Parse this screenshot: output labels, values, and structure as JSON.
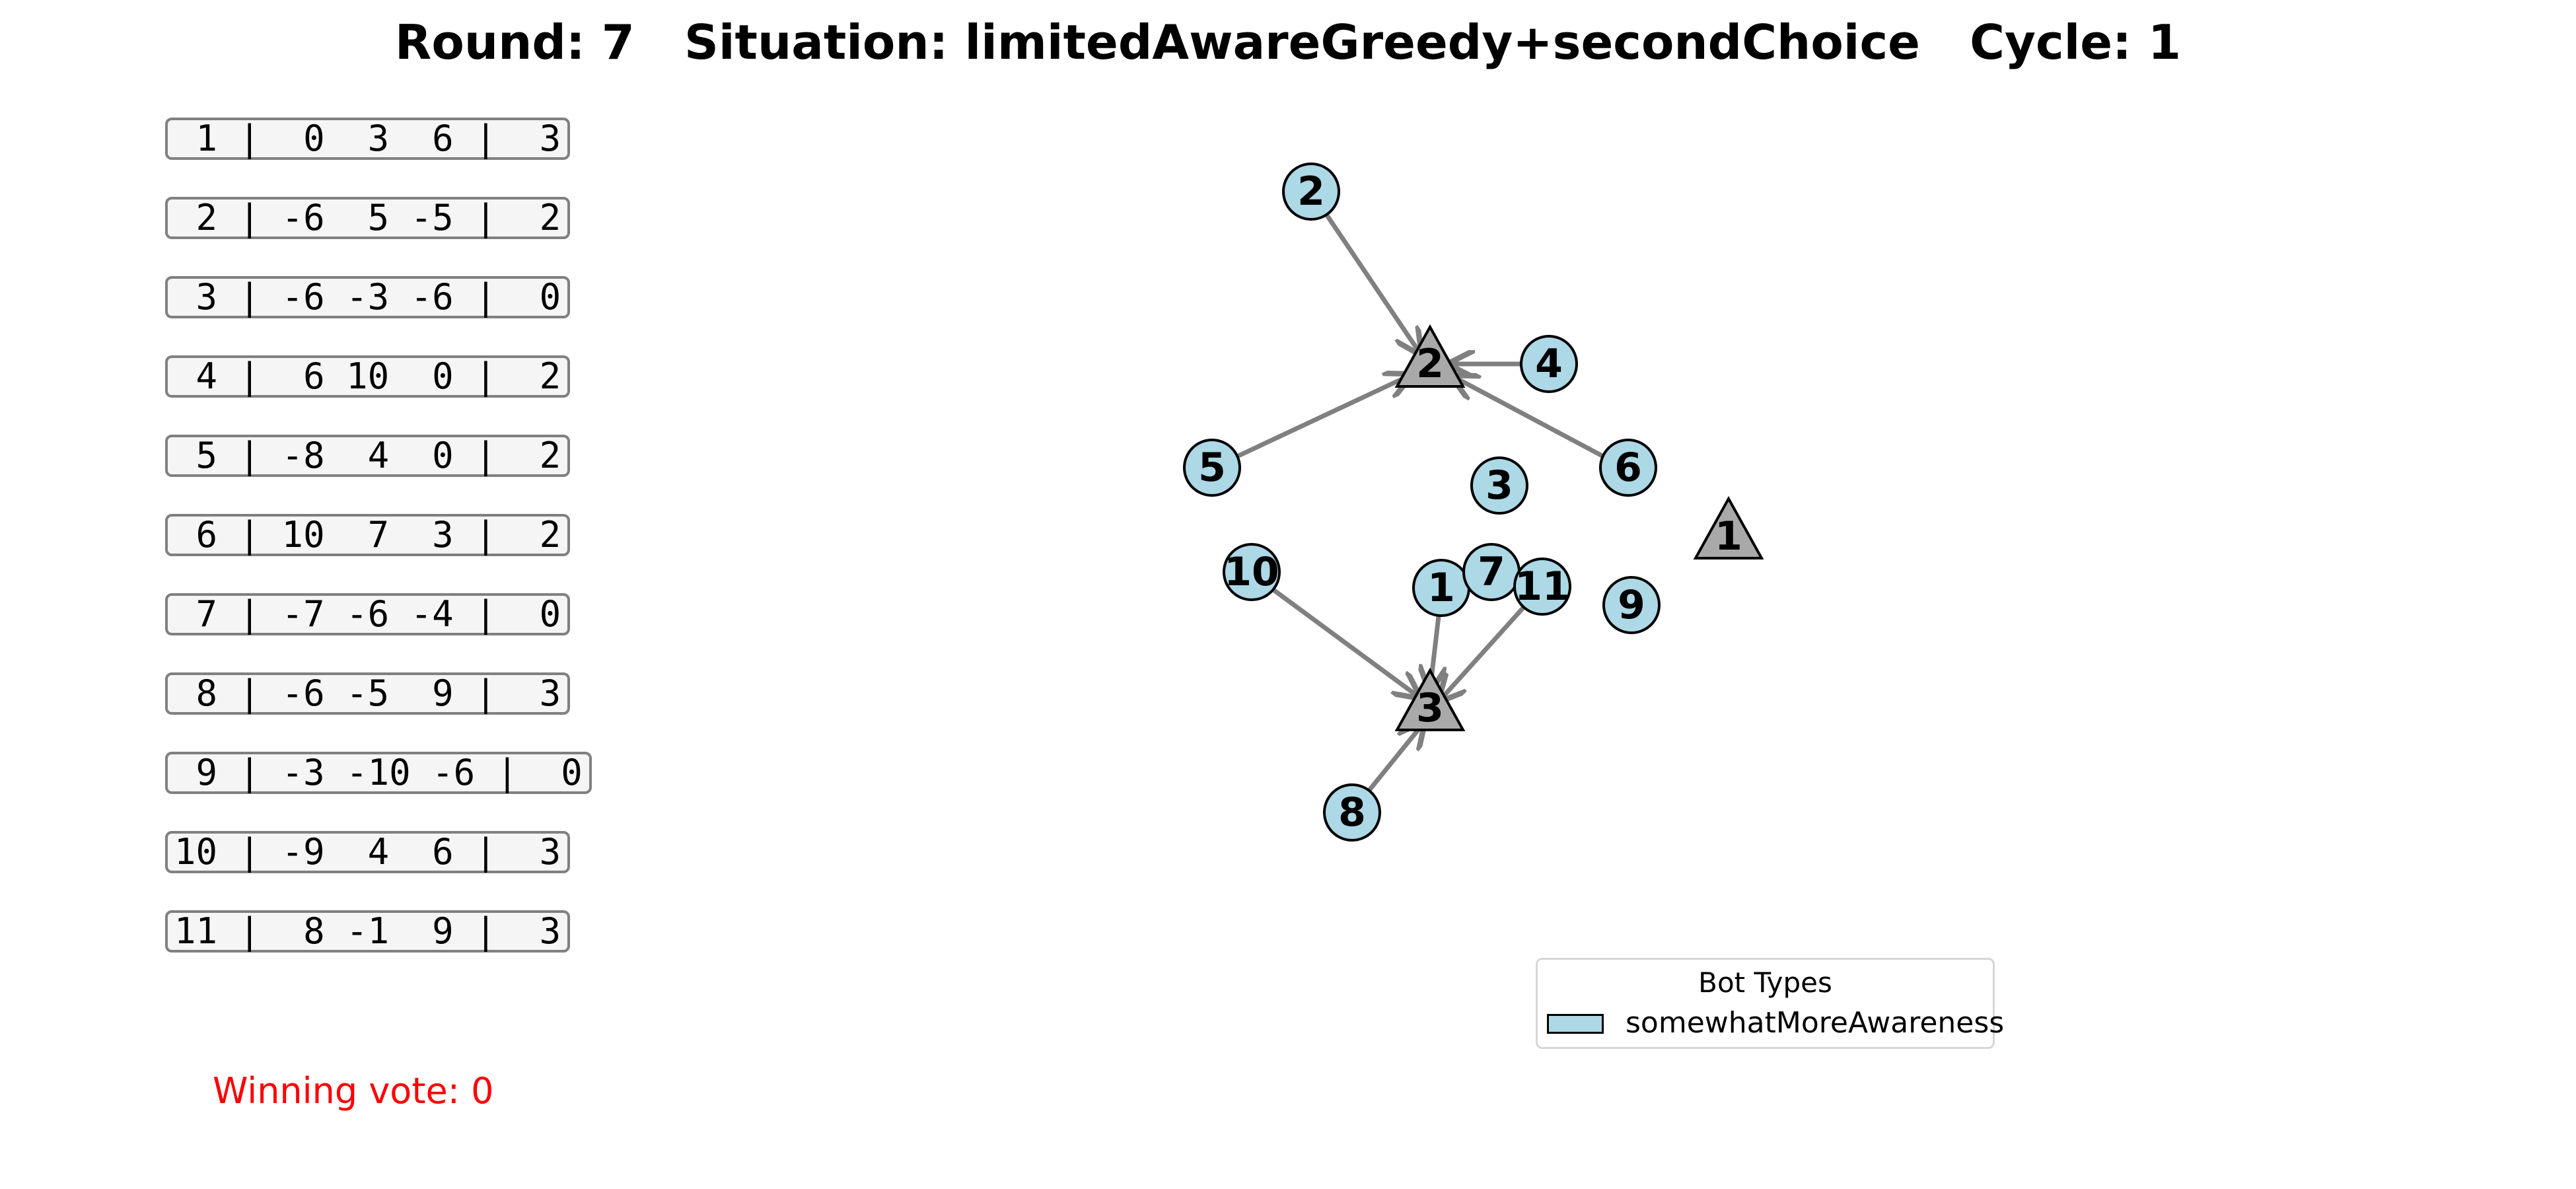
{
  "title": "Round: 7   Situation: limitedAwareGreedy+secondChoice   Cycle: 1",
  "utility_rows": [
    " 1 |  0  3  6 |  3",
    " 2 | -6  5 -5 |  2",
    " 3 | -6 -3 -6 |  0",
    " 4 |  6 10  0 |  2",
    " 5 | -8  4  0 |  2",
    " 6 | 10  7  3 |  2",
    " 7 | -7 -6 -4 |  0",
    " 8 | -6 -5  9 |  3",
    " 9 | -3 -10 -6 |  0",
    "10 | -9  4  6 |  3",
    "11 |  8 -1  9 |  3"
  ],
  "winning_vote": "Winning vote: 0",
  "legend": {
    "title": "Bot Types",
    "entries": [
      {
        "label": "somewhatMoreAwareness",
        "color": "#add8e6"
      }
    ]
  },
  "graph": {
    "candidates": [
      {
        "id": "1",
        "color": "#a9a9a9"
      },
      {
        "id": "2",
        "color": "#a9a9a9"
      },
      {
        "id": "3",
        "color": "#a9a9a9"
      }
    ],
    "voters": [
      {
        "id": "1",
        "votes_for": "3"
      },
      {
        "id": "2",
        "votes_for": "2"
      },
      {
        "id": "3",
        "votes_for": null
      },
      {
        "id": "4",
        "votes_for": "2"
      },
      {
        "id": "5",
        "votes_for": "2"
      },
      {
        "id": "6",
        "votes_for": "2"
      },
      {
        "id": "7",
        "votes_for": null
      },
      {
        "id": "8",
        "votes_for": "3"
      },
      {
        "id": "9",
        "votes_for": null
      },
      {
        "id": "10",
        "votes_for": "3"
      },
      {
        "id": "11",
        "votes_for": "3"
      }
    ]
  }
}
